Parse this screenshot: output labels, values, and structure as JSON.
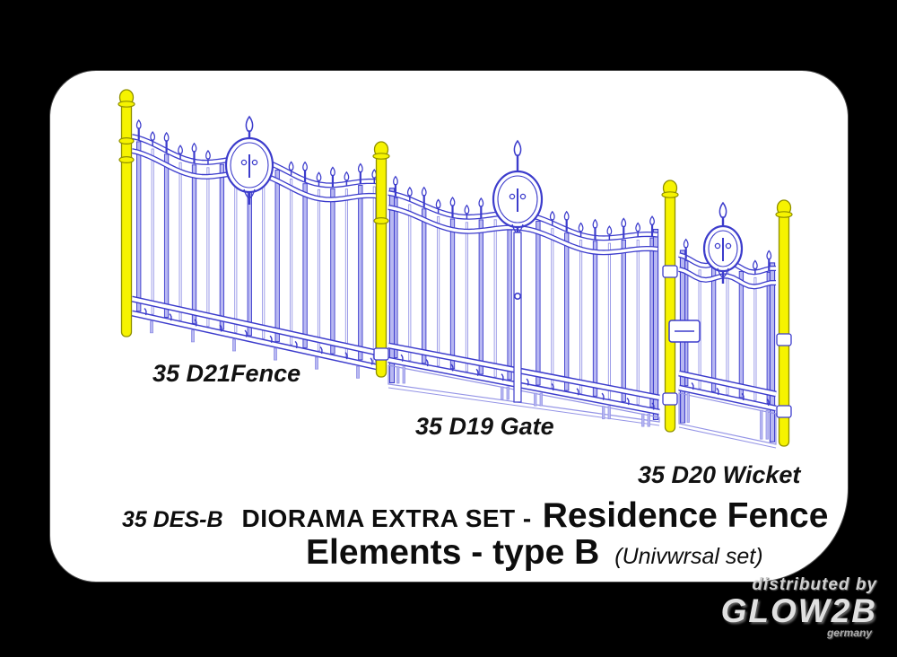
{
  "labels": {
    "fence": "35 D21Fence",
    "gate": "35 D19 Gate",
    "wicket": "35 D20 Wicket"
  },
  "title": {
    "code": "35 DES-B",
    "series": "DIORAMA EXTRA SET -",
    "name": "Residence Fence",
    "name_line2": "Elements - type B",
    "note": "(Univwrsal set)"
  },
  "watermark": {
    "line1": "distributed by",
    "brand": "GLOW2B",
    "country": "germany"
  },
  "drawing": {
    "parts": [
      "fence-panel-drawing",
      "gate-drawing",
      "wicket-drawing"
    ],
    "post_icon": "fence-post"
  },
  "colors": {
    "background": "#000000",
    "card_bg": "#ffffff",
    "card_border": "#4a4a4a",
    "line_blue": "#3c3ccc",
    "line_blue_light": "#9494e6",
    "picket_fill": "#b8b8f2",
    "post_yellow": "#f6f300",
    "post_outline": "#8f8f00",
    "clamp_white": "#ffffff",
    "text_black": "#121212",
    "watermark_gray": "#d6d6d6"
  }
}
